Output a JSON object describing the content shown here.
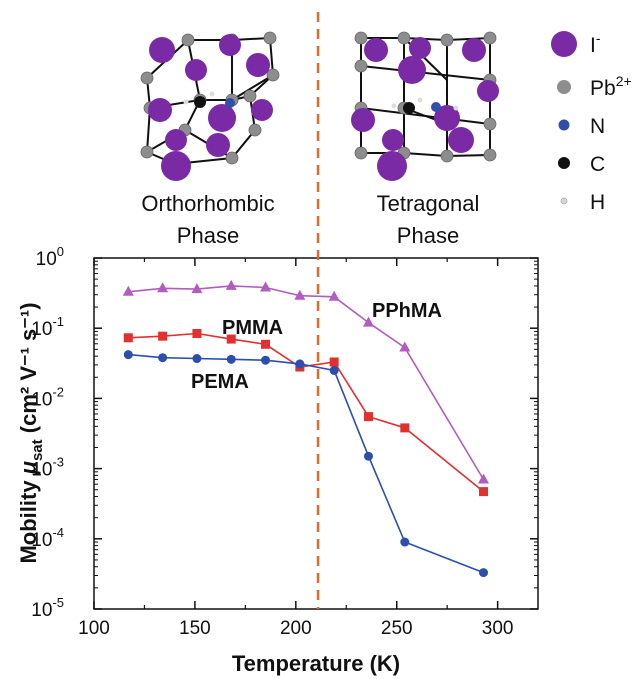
{
  "crystal": {
    "left_phase_line1": "Orthorhombic",
    "left_phase_line2": "Phase",
    "right_phase_line1": "Tetragonal",
    "right_phase_line2": "Phase"
  },
  "atom_legend": [
    {
      "label": "I",
      "sup": "-",
      "color": "#7b2aa6",
      "icon": "large-purple-sphere"
    },
    {
      "label": "Pb",
      "sup": "2+",
      "color": "#8d8d8d",
      "icon": "grey-sphere"
    },
    {
      "label": "N",
      "sup": "",
      "color": "#2f4fa8",
      "icon": "blue-sphere"
    },
    {
      "label": "C",
      "sup": "",
      "color": "#111111",
      "icon": "black-sphere"
    },
    {
      "label": "H",
      "sup": "",
      "color": "#d8d8d8",
      "icon": "small-white-sphere"
    }
  ],
  "colors": {
    "pphma": "#b25cc0",
    "pmma": "#e03030",
    "pema": "#2c4fae",
    "transition_line": "#e06a2a"
  },
  "chart_data": {
    "type": "line",
    "yscale": "log",
    "xlabel": "Temperature (K)",
    "ylabel_parts": {
      "pre": "Mobility ",
      "mu": "μ",
      "sub": "sat",
      "units": " (cm² V⁻¹ s⁻¹)"
    },
    "xlim": [
      100,
      320
    ],
    "ylim": [
      1e-05,
      1
    ],
    "xticks": [
      100,
      150,
      200,
      250,
      300
    ],
    "yticks": [
      {
        "base": "10",
        "exp": "-5"
      },
      {
        "base": "10",
        "exp": "-4"
      },
      {
        "base": "10",
        "exp": "-3"
      },
      {
        "base": "10",
        "exp": "-2"
      },
      {
        "base": "10",
        "exp": "-1"
      },
      {
        "base": "10",
        "exp": "0"
      }
    ],
    "transition_temperature": 211,
    "series": [
      {
        "name": "PPhMA",
        "marker": "triangle",
        "x": [
          117,
          134,
          151,
          168,
          185,
          202,
          219,
          236,
          254,
          293
        ],
        "y": [
          0.33,
          0.37,
          0.36,
          0.4,
          0.38,
          0.29,
          0.28,
          0.12,
          0.053,
          0.0007
        ]
      },
      {
        "name": "PMMA",
        "marker": "square",
        "x": [
          117,
          134,
          151,
          168,
          185,
          202,
          219,
          236,
          254,
          293
        ],
        "y": [
          0.073,
          0.077,
          0.084,
          0.07,
          0.059,
          0.028,
          0.033,
          0.0055,
          0.0038,
          0.00047
        ]
      },
      {
        "name": "PEMA",
        "marker": "circle",
        "x": [
          117,
          134,
          151,
          168,
          185,
          202,
          219,
          236,
          254,
          293
        ],
        "y": [
          0.042,
          0.038,
          0.037,
          0.036,
          0.035,
          0.031,
          0.025,
          0.0015,
          9e-05,
          3.3e-05
        ]
      }
    ]
  }
}
